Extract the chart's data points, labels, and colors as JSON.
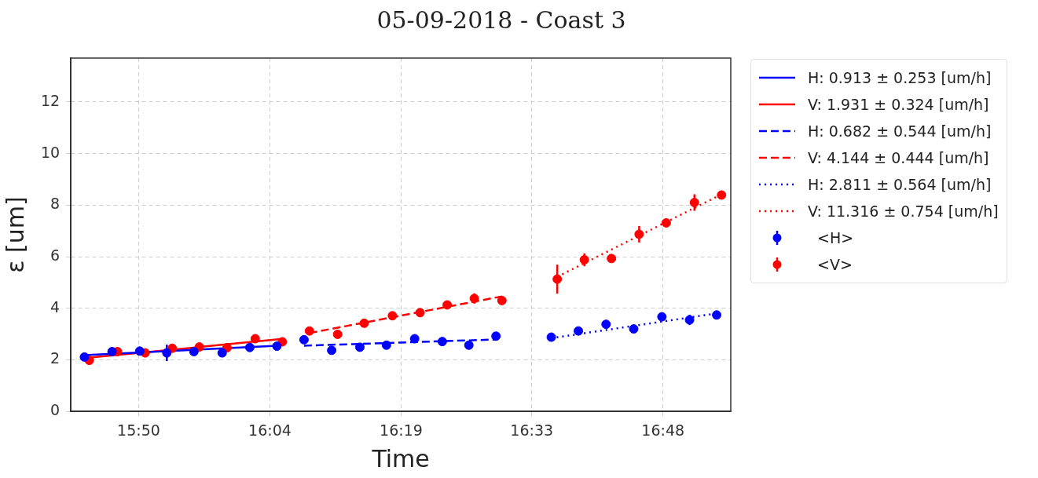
{
  "chart_data": {
    "type": "scatter",
    "title": "05-09-2018 - Coast 3",
    "xlabel": "Time",
    "ylabel": "ε [um]",
    "xlim": [
      15.708,
      16.925
    ],
    "xticks": [
      {
        "value": 15.833,
        "label": "15:50"
      },
      {
        "value": 16.075,
        "label": "16:04"
      },
      {
        "value": 16.317,
        "label": "16:19"
      },
      {
        "value": 16.558,
        "label": "16:33"
      },
      {
        "value": 16.8,
        "label": "16:48"
      }
    ],
    "ylim": [
      0,
      13.7
    ],
    "yticks": [
      0,
      2,
      4,
      6,
      8,
      10,
      12
    ],
    "grid": true,
    "legend": "right",
    "series": [
      {
        "type": "line",
        "name": "H: 0.913 ± 0.253 [um/h]",
        "color": "#0000ff",
        "line_style": "solid",
        "marker": "none",
        "x": [
          15.733,
          16.088
        ],
        "values": [
          2.18,
          2.55
        ]
      },
      {
        "type": "line",
        "name": "V: 1.931 ± 0.324 [um/h]",
        "color": "#ff0000",
        "line_style": "solid",
        "marker": "none",
        "x": [
          15.74,
          16.098
        ],
        "values": [
          2.08,
          2.81
        ]
      },
      {
        "type": "line",
        "name": "H: 0.682 ± 0.544 [um/h]",
        "color": "#0000ff",
        "line_style": "dashed",
        "marker": "none",
        "x": [
          16.138,
          16.492
        ],
        "values": [
          2.55,
          2.79
        ]
      },
      {
        "type": "line",
        "name": "V: 4.144 ± 0.444 [um/h]",
        "color": "#ff0000",
        "line_style": "dashed",
        "marker": "none",
        "x": [
          16.148,
          16.503
        ],
        "values": [
          3.04,
          4.46
        ]
      },
      {
        "type": "line",
        "name": "H: 2.811 ± 0.564 [um/h]",
        "color": "#0000ff",
        "line_style": "dotted",
        "marker": "none",
        "x": [
          16.594,
          16.899
        ],
        "values": [
          2.84,
          3.8
        ]
      },
      {
        "type": "line",
        "name": "V: 11.316 ± 0.754 [um/h]",
        "color": "#ff0000",
        "line_style": "dotted",
        "marker": "none",
        "x": [
          16.605,
          16.908
        ],
        "values": [
          5.22,
          8.42
        ]
      },
      {
        "type": "scatter",
        "name": "<H>",
        "color": "#0000ff",
        "marker": "circle",
        "x": [
          15.733,
          15.784,
          15.835,
          15.885,
          15.935,
          15.987,
          16.038,
          16.088,
          16.138,
          16.189,
          16.241,
          16.29,
          16.342,
          16.393,
          16.442,
          16.492,
          16.594,
          16.644,
          16.695,
          16.746,
          16.798,
          16.849,
          16.899
        ],
        "values": [
          2.11,
          2.32,
          2.34,
          2.27,
          2.32,
          2.27,
          2.48,
          2.53,
          2.78,
          2.37,
          2.49,
          2.57,
          2.82,
          2.71,
          2.57,
          2.92,
          2.88,
          3.12,
          3.38,
          3.2,
          3.67,
          3.55,
          3.74
        ],
        "errors": [
          null,
          null,
          null,
          0.32,
          null,
          null,
          null,
          null,
          null,
          null,
          null,
          null,
          null,
          null,
          null,
          null,
          null,
          0.15,
          null,
          0.15,
          null,
          0.2,
          null
        ]
      },
      {
        "type": "scatter",
        "name": "<V>",
        "color": "#ff0000",
        "marker": "circle",
        "x": [
          15.742,
          15.794,
          15.845,
          15.895,
          15.945,
          15.996,
          16.048,
          16.098,
          16.148,
          16.2,
          16.249,
          16.301,
          16.352,
          16.402,
          16.452,
          16.503,
          16.605,
          16.655,
          16.705,
          16.756,
          16.806,
          16.858,
          16.908
        ],
        "values": [
          1.98,
          2.32,
          2.27,
          2.45,
          2.5,
          2.47,
          2.82,
          2.7,
          3.12,
          2.99,
          3.42,
          3.71,
          3.83,
          4.13,
          4.38,
          4.3,
          5.13,
          5.88,
          5.93,
          6.87,
          7.31,
          8.1,
          8.39
        ],
        "errors": [
          null,
          null,
          null,
          null,
          null,
          null,
          null,
          null,
          null,
          null,
          null,
          null,
          null,
          null,
          0.2,
          null,
          0.56,
          0.25,
          null,
          0.32,
          null,
          0.32,
          0.15
        ]
      }
    ]
  }
}
